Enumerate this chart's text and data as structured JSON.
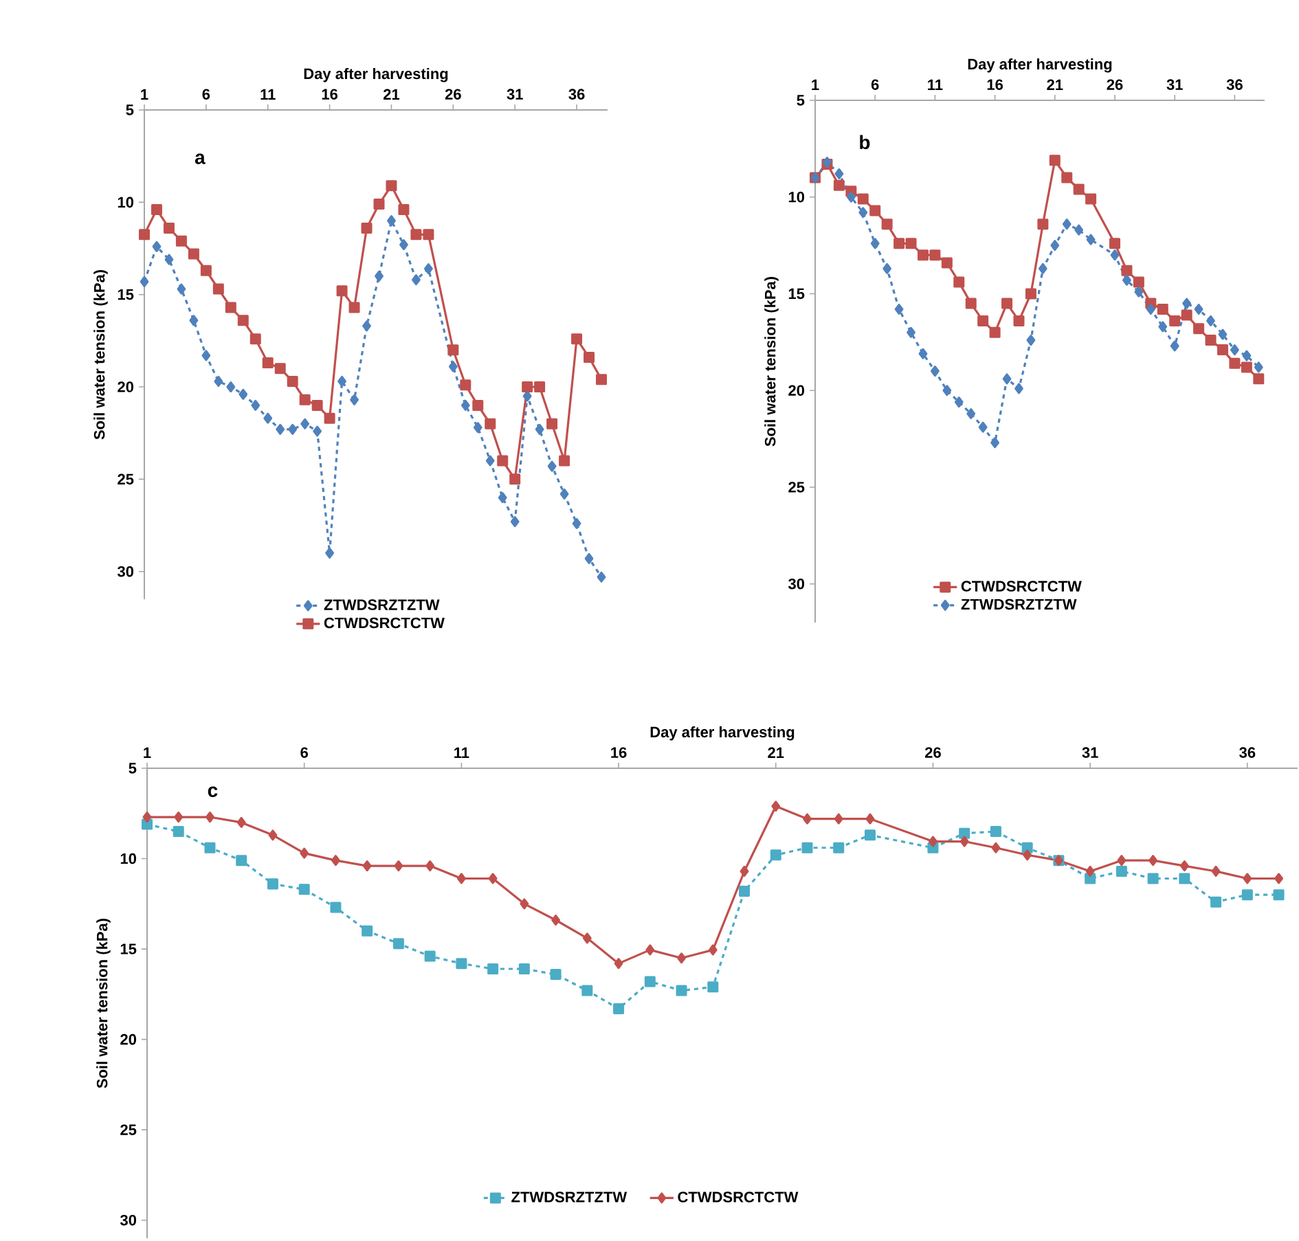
{
  "chart_data": [
    {
      "type": "line",
      "xlabel": "Day after  harvesting",
      "ylabel": "Soil water tension (kPa)",
      "xlim": [
        1,
        38.5
      ],
      "ylim": [
        31.5,
        5
      ],
      "xticks": [
        1,
        6,
        11,
        16,
        21,
        26,
        31,
        36
      ],
      "yticks": [
        5,
        10,
        15,
        20,
        25,
        30
      ],
      "legend": "bottom",
      "annotations": [
        "a"
      ],
      "series": [
        {
          "name": "ZTWDSRZTZTW",
          "color": "#4f81bd",
          "marker": "diamond",
          "line_style": "dashed",
          "x": [
            1,
            2,
            3,
            4,
            5,
            6,
            7,
            8,
            9,
            10,
            11,
            12,
            13,
            14,
            15,
            16,
            17,
            18,
            19,
            20,
            21,
            22,
            23,
            24,
            26,
            27,
            28,
            29,
            30,
            31,
            32,
            33,
            34,
            35,
            36,
            37,
            38
          ],
          "values": [
            14.3,
            12.4,
            13.1,
            14.7,
            16.4,
            18.3,
            19.7,
            20.0,
            20.4,
            21.0,
            21.7,
            22.3,
            22.3,
            22.0,
            22.4,
            29.0,
            19.7,
            20.7,
            16.7,
            14.0,
            11.0,
            12.3,
            14.2,
            13.6,
            18.9,
            21.0,
            22.2,
            24.0,
            26.0,
            27.3,
            20.5,
            22.3,
            24.3,
            25.8,
            27.4,
            29.3,
            30.3
          ]
        },
        {
          "name": "CTWDSRCTCTW",
          "color": "#c0504d",
          "marker": "square",
          "line_style": "solid",
          "x": [
            1,
            2,
            3,
            4,
            5,
            6,
            7,
            8,
            9,
            10,
            11,
            12,
            13,
            14,
            15,
            16,
            17,
            18,
            19,
            20,
            21,
            22,
            23,
            24,
            26,
            27,
            28,
            29,
            30,
            31,
            32,
            33,
            34,
            35,
            36,
            37,
            38
          ],
          "values": [
            11.75,
            10.4,
            11.4,
            12.1,
            12.8,
            13.7,
            14.7,
            15.7,
            16.4,
            17.4,
            18.7,
            19.0,
            19.7,
            20.7,
            21.0,
            21.7,
            14.8,
            15.7,
            11.4,
            10.1,
            9.1,
            10.4,
            11.75,
            11.75,
            18.0,
            19.9,
            21.0,
            22.0,
            24.0,
            25.0,
            20.0,
            20.0,
            22.0,
            24.0,
            17.4,
            18.4,
            19.6
          ]
        }
      ]
    },
    {
      "type": "line",
      "xlabel": "Day after  harvesting",
      "ylabel": "Soil water tension (kPa)",
      "xlim": [
        1,
        38.5
      ],
      "ylim": [
        32,
        5
      ],
      "xticks": [
        1,
        6,
        11,
        16,
        21,
        26,
        31,
        36
      ],
      "yticks": [
        5,
        10,
        15,
        20,
        25,
        30
      ],
      "legend": "bottom",
      "annotations": [
        "b"
      ],
      "series": [
        {
          "name": "CTWDSRCTCTW",
          "color": "#c0504d",
          "marker": "square",
          "line_style": "solid",
          "x": [
            1,
            2,
            3,
            4,
            5,
            6,
            7,
            8,
            9,
            10,
            11,
            12,
            13,
            14,
            15,
            16,
            17,
            18,
            19,
            20,
            21,
            22,
            23,
            24,
            26,
            27,
            28,
            29,
            30,
            31,
            32,
            33,
            34,
            35,
            36,
            37,
            38
          ],
          "values": [
            9.0,
            8.3,
            9.4,
            9.7,
            10.1,
            10.7,
            11.4,
            12.4,
            12.4,
            13.0,
            13.0,
            13.4,
            14.4,
            15.5,
            16.4,
            17.0,
            15.5,
            16.4,
            15.0,
            11.4,
            8.1,
            9.0,
            9.6,
            10.1,
            12.4,
            13.8,
            14.4,
            15.5,
            15.8,
            16.4,
            16.1,
            16.8,
            17.4,
            17.9,
            18.6,
            18.8,
            19.4
          ]
        },
        {
          "name": "ZTWDSRZTZTW",
          "color": "#4f81bd",
          "marker": "diamond",
          "line_style": "dashed",
          "x": [
            1,
            2,
            3,
            4,
            5,
            6,
            7,
            8,
            9,
            10,
            11,
            12,
            13,
            14,
            15,
            16,
            17,
            18,
            19,
            20,
            21,
            22,
            23,
            24,
            26,
            27,
            28,
            29,
            30,
            31,
            32,
            33,
            34,
            35,
            36,
            37,
            38
          ],
          "values": [
            9.0,
            8.2,
            8.8,
            10.0,
            10.8,
            12.4,
            13.7,
            15.8,
            17.0,
            18.1,
            19.0,
            20.0,
            20.6,
            21.2,
            21.9,
            22.7,
            19.4,
            19.9,
            17.4,
            13.7,
            12.5,
            11.4,
            11.7,
            12.2,
            13.0,
            14.3,
            14.9,
            15.8,
            16.7,
            17.7,
            15.5,
            15.8,
            16.4,
            17.1,
            17.9,
            18.2,
            18.8
          ]
        }
      ]
    },
    {
      "type": "line",
      "xlabel": "Day after  harvesting",
      "ylabel": "Soil water tension (kPa)",
      "xlim": [
        1,
        37.6
      ],
      "ylim": [
        31,
        5
      ],
      "xticks": [
        1,
        6,
        11,
        16,
        21,
        26,
        31,
        36
      ],
      "yticks": [
        5,
        10,
        15,
        20,
        25,
        30
      ],
      "legend": "bottom",
      "annotations": [
        "c"
      ],
      "series": [
        {
          "name": "ZTWDSRZTZTW",
          "color": "#4bacc6",
          "marker": "square",
          "line_style": "dashed",
          "x": [
            1,
            2,
            3,
            4,
            5,
            6,
            7,
            8,
            9,
            10,
            11,
            12,
            13,
            14,
            15,
            16,
            17,
            18,
            19,
            20,
            21,
            22,
            23,
            24,
            26,
            27,
            28,
            29,
            30,
            31,
            32,
            33,
            34,
            35,
            36,
            37
          ],
          "values": [
            8.1,
            8.5,
            9.4,
            10.1,
            11.4,
            11.7,
            12.7,
            14.0,
            14.7,
            15.4,
            15.8,
            16.1,
            16.1,
            16.4,
            17.3,
            18.3,
            16.8,
            17.3,
            17.1,
            11.8,
            9.8,
            9.4,
            9.4,
            8.7,
            9.4,
            8.6,
            8.5,
            9.4,
            10.1,
            11.1,
            10.7,
            11.1,
            11.1,
            12.4,
            12.0,
            12.0
          ]
        },
        {
          "name": "CTWDSRCTCTW",
          "color": "#c0504d",
          "marker": "diamond",
          "line_style": "solid",
          "x": [
            1,
            2,
            3,
            4,
            5,
            6,
            7,
            8,
            9,
            10,
            11,
            12,
            13,
            14,
            15,
            16,
            17,
            18,
            19,
            20,
            21,
            22,
            23,
            24,
            26,
            27,
            28,
            29,
            30,
            31,
            32,
            33,
            34,
            35,
            36,
            37
          ],
          "values": [
            7.7,
            7.7,
            7.7,
            8.0,
            8.7,
            9.7,
            10.1,
            10.4,
            10.4,
            10.4,
            11.1,
            11.1,
            12.5,
            13.4,
            14.4,
            15.8,
            15.05,
            15.5,
            15.05,
            10.7,
            7.1,
            7.8,
            7.8,
            7.8,
            9.05,
            9.05,
            9.4,
            9.8,
            10.1,
            10.7,
            10.1,
            10.1,
            10.4,
            10.7,
            11.1,
            11.1
          ]
        }
      ]
    }
  ]
}
